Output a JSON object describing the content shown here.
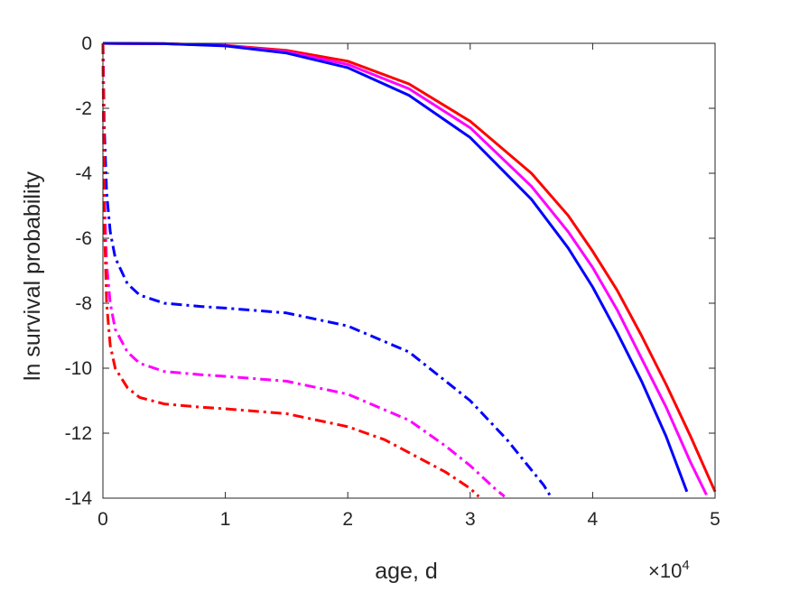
{
  "chart_data": {
    "type": "line",
    "title": "",
    "xlabel": "age, d",
    "ylabel": "ln survival probability",
    "x_multiplier": {
      "base": "×10",
      "exponent": "4"
    },
    "xlim": [
      0,
      50000
    ],
    "ylim": [
      -14,
      0
    ],
    "xticks": [
      0,
      10000,
      20000,
      30000,
      40000,
      50000
    ],
    "xtick_labels": [
      "0",
      "1",
      "2",
      "3",
      "4",
      "5"
    ],
    "yticks": [
      0,
      -2,
      -4,
      -6,
      -8,
      -10,
      -12,
      -14
    ],
    "ytick_labels": [
      "0",
      "-2",
      "-4",
      "-6",
      "-8",
      "-10",
      "-12",
      "-14"
    ],
    "grid": false,
    "legend": "none",
    "series": [
      {
        "color": "#ff0000",
        "style": "solid",
        "x": [
          0,
          5000,
          10000,
          15000,
          20000,
          25000,
          30000,
          35000,
          38000,
          40000,
          42000,
          44000,
          46000,
          48000,
          50000
        ],
        "y": [
          0,
          -0.01,
          -0.06,
          -0.22,
          -0.55,
          -1.25,
          -2.4,
          -4.0,
          -5.3,
          -6.4,
          -7.6,
          -9.0,
          -10.5,
          -12.1,
          -13.8
        ]
      },
      {
        "color": "#ff00ff",
        "style": "solid",
        "x": [
          0,
          5000,
          10000,
          15000,
          20000,
          25000,
          30000,
          35000,
          38000,
          40000,
          42000,
          44000,
          46000,
          48000,
          49300
        ],
        "y": [
          0,
          -0.01,
          -0.07,
          -0.26,
          -0.65,
          -1.4,
          -2.6,
          -4.4,
          -5.8,
          -6.9,
          -8.2,
          -9.7,
          -11.2,
          -12.9,
          -13.9
        ]
      },
      {
        "color": "#0000ff",
        "style": "solid",
        "x": [
          0,
          5000,
          10000,
          15000,
          20000,
          25000,
          30000,
          35000,
          38000,
          40000,
          42000,
          44000,
          46000,
          47700
        ],
        "y": [
          0,
          -0.01,
          -0.08,
          -0.3,
          -0.75,
          -1.6,
          -2.9,
          -4.8,
          -6.3,
          -7.5,
          -8.9,
          -10.4,
          -12.1,
          -13.8
        ]
      },
      {
        "color": "#0000ff",
        "style": "dashdot",
        "x": [
          0,
          100,
          300,
          600,
          1000,
          2000,
          3000,
          5000,
          8000,
          10000,
          15000,
          20000,
          25000,
          30000,
          33000,
          36000,
          36500
        ],
        "y": [
          0,
          -2.5,
          -4.6,
          -5.8,
          -6.6,
          -7.4,
          -7.75,
          -8.0,
          -8.1,
          -8.15,
          -8.3,
          -8.7,
          -9.5,
          -11.0,
          -12.2,
          -13.6,
          -13.9
        ]
      },
      {
        "color": "#ff00ff",
        "style": "dashdot",
        "x": [
          0,
          100,
          300,
          600,
          1000,
          2000,
          3000,
          5000,
          8000,
          10000,
          15000,
          20000,
          25000,
          28000,
          30000,
          32000,
          32800
        ],
        "y": [
          0,
          -4.5,
          -6.8,
          -8.0,
          -8.8,
          -9.5,
          -9.85,
          -10.1,
          -10.2,
          -10.25,
          -10.4,
          -10.8,
          -11.6,
          -12.4,
          -13.0,
          -13.7,
          -13.95
        ]
      },
      {
        "color": "#ff0000",
        "style": "dashdot",
        "x": [
          0,
          100,
          300,
          600,
          1000,
          2000,
          3000,
          5000,
          8000,
          10000,
          15000,
          20000,
          23000,
          26000,
          28000,
          30000,
          30700
        ],
        "y": [
          0,
          -5.3,
          -8.0,
          -9.3,
          -10.0,
          -10.6,
          -10.9,
          -11.1,
          -11.2,
          -11.25,
          -11.4,
          -11.8,
          -12.2,
          -12.8,
          -13.2,
          -13.7,
          -13.95
        ]
      }
    ]
  }
}
